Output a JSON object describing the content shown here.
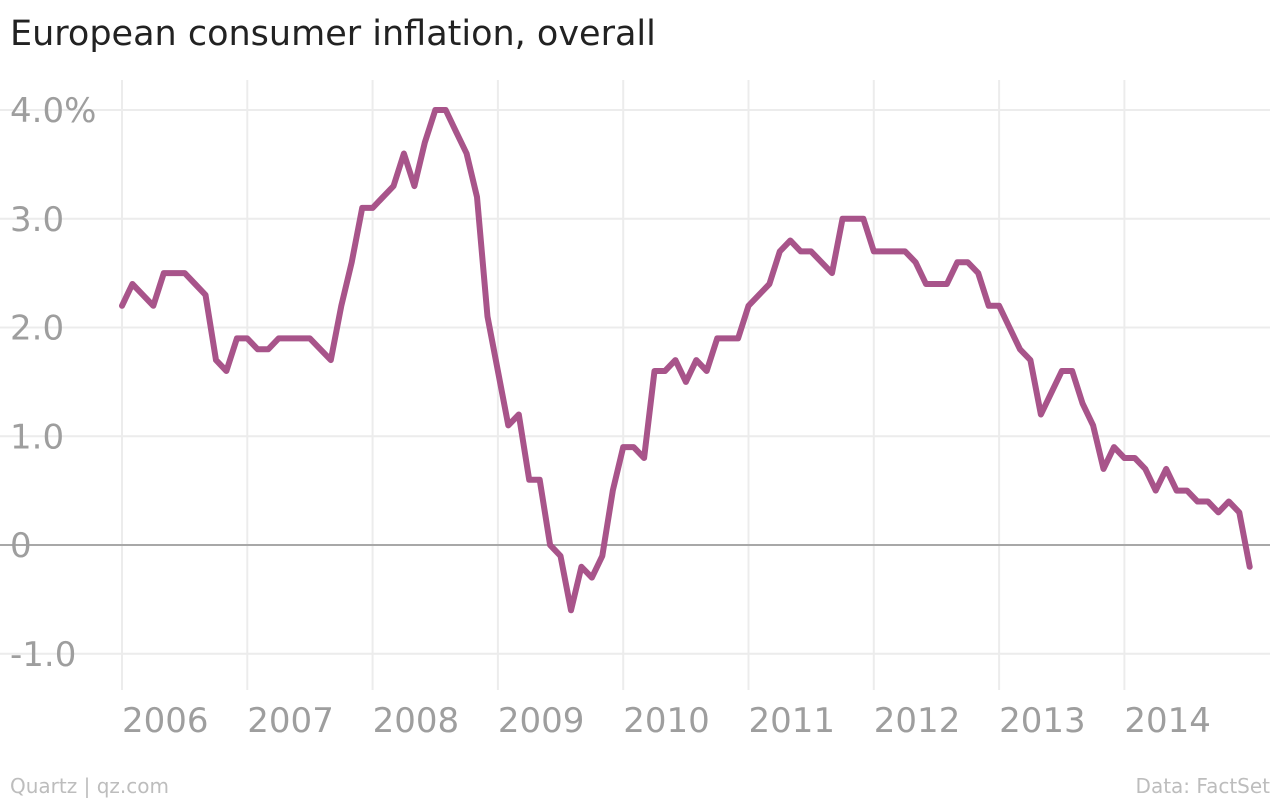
{
  "chart_data": {
    "type": "line",
    "title": "European consumer inflation, overall",
    "xlabel": "",
    "ylabel": "",
    "ylim": [
      -1.2,
      4.2
    ],
    "grid": true,
    "y_ticks": [
      {
        "value": 4,
        "label": "4.0%"
      },
      {
        "value": 3,
        "label": "3.0"
      },
      {
        "value": 2,
        "label": "2.0"
      },
      {
        "value": 1,
        "label": "1.0"
      },
      {
        "value": 0,
        "label": "0"
      },
      {
        "value": -1,
        "label": "-1.0"
      }
    ],
    "x_ticks": [
      "2006",
      "2007",
      "2008",
      "2009",
      "2010",
      "2011",
      "2012",
      "2013",
      "2014"
    ],
    "x_range": [
      "2006-01",
      "2014-12"
    ],
    "series": [
      {
        "color": "#a8548a",
        "points": [
          [
            "2006-01",
            2.2
          ],
          [
            "2006-02",
            2.4
          ],
          [
            "2006-03",
            2.3
          ],
          [
            "2006-04",
            2.2
          ],
          [
            "2006-05",
            2.5
          ],
          [
            "2006-06",
            2.5
          ],
          [
            "2006-07",
            2.5
          ],
          [
            "2006-08",
            2.4
          ],
          [
            "2006-09",
            2.3
          ],
          [
            "2006-10",
            1.7
          ],
          [
            "2006-11",
            1.6
          ],
          [
            "2006-12",
            1.9
          ],
          [
            "2007-01",
            1.9
          ],
          [
            "2007-02",
            1.8
          ],
          [
            "2007-03",
            1.8
          ],
          [
            "2007-04",
            1.9
          ],
          [
            "2007-05",
            1.9
          ],
          [
            "2007-06",
            1.9
          ],
          [
            "2007-07",
            1.9
          ],
          [
            "2007-08",
            1.8
          ],
          [
            "2007-09",
            1.7
          ],
          [
            "2007-10",
            2.2
          ],
          [
            "2007-11",
            2.6
          ],
          [
            "2007-12",
            3.1
          ],
          [
            "2008-01",
            3.1
          ],
          [
            "2008-02",
            3.2
          ],
          [
            "2008-03",
            3.3
          ],
          [
            "2008-04",
            3.6
          ],
          [
            "2008-05",
            3.3
          ],
          [
            "2008-06",
            3.7
          ],
          [
            "2008-07",
            4.0
          ],
          [
            "2008-08",
            4.0
          ],
          [
            "2008-09",
            3.8
          ],
          [
            "2008-10",
            3.6
          ],
          [
            "2008-11",
            3.2
          ],
          [
            "2008-12",
            2.1
          ],
          [
            "2009-01",
            1.6
          ],
          [
            "2009-02",
            1.1
          ],
          [
            "2009-03",
            1.2
          ],
          [
            "2009-04",
            0.6
          ],
          [
            "2009-05",
            0.6
          ],
          [
            "2009-06",
            0.0
          ],
          [
            "2009-07",
            -0.1
          ],
          [
            "2009-08",
            -0.6
          ],
          [
            "2009-09",
            -0.2
          ],
          [
            "2009-10",
            -0.3
          ],
          [
            "2009-11",
            -0.1
          ],
          [
            "2009-12",
            0.5
          ],
          [
            "2010-01",
            0.9
          ],
          [
            "2010-02",
            0.9
          ],
          [
            "2010-03",
            0.8
          ],
          [
            "2010-04",
            1.6
          ],
          [
            "2010-05",
            1.6
          ],
          [
            "2010-06",
            1.7
          ],
          [
            "2010-07",
            1.5
          ],
          [
            "2010-08",
            1.7
          ],
          [
            "2010-09",
            1.6
          ],
          [
            "2010-10",
            1.9
          ],
          [
            "2010-11",
            1.9
          ],
          [
            "2010-12",
            1.9
          ],
          [
            "2011-01",
            2.2
          ],
          [
            "2011-02",
            2.3
          ],
          [
            "2011-03",
            2.4
          ],
          [
            "2011-04",
            2.7
          ],
          [
            "2011-05",
            2.8
          ],
          [
            "2011-06",
            2.7
          ],
          [
            "2011-07",
            2.7
          ],
          [
            "2011-08",
            2.6
          ],
          [
            "2011-09",
            2.5
          ],
          [
            "2011-10",
            3.0
          ],
          [
            "2011-11",
            3.0
          ],
          [
            "2011-12",
            3.0
          ],
          [
            "2012-01",
            2.7
          ],
          [
            "2012-02",
            2.7
          ],
          [
            "2012-03",
            2.7
          ],
          [
            "2012-04",
            2.7
          ],
          [
            "2012-05",
            2.6
          ],
          [
            "2012-06",
            2.4
          ],
          [
            "2012-07",
            2.4
          ],
          [
            "2012-08",
            2.4
          ],
          [
            "2012-09",
            2.6
          ],
          [
            "2012-10",
            2.6
          ],
          [
            "2012-11",
            2.5
          ],
          [
            "2012-12",
            2.2
          ],
          [
            "2013-01",
            2.2
          ],
          [
            "2013-02",
            2.0
          ],
          [
            "2013-03",
            1.8
          ],
          [
            "2013-04",
            1.7
          ],
          [
            "2013-05",
            1.2
          ],
          [
            "2013-06",
            1.4
          ],
          [
            "2013-07",
            1.6
          ],
          [
            "2013-08",
            1.6
          ],
          [
            "2013-09",
            1.3
          ],
          [
            "2013-10",
            1.1
          ],
          [
            "2013-11",
            0.7
          ],
          [
            "2013-12",
            0.9
          ],
          [
            "2014-01",
            0.8
          ],
          [
            "2014-02",
            0.8
          ],
          [
            "2014-03",
            0.7
          ],
          [
            "2014-04",
            0.5
          ],
          [
            "2014-05",
            0.7
          ],
          [
            "2014-06",
            0.5
          ],
          [
            "2014-07",
            0.5
          ],
          [
            "2014-08",
            0.4
          ],
          [
            "2014-09",
            0.4
          ],
          [
            "2014-10",
            0.3
          ],
          [
            "2014-11",
            0.4
          ],
          [
            "2014-12",
            0.3
          ],
          [
            "2015-01",
            -0.2
          ]
        ]
      }
    ]
  },
  "footer": {
    "source_left": "Quartz | qz.com",
    "source_right": "Data: FactSet"
  }
}
